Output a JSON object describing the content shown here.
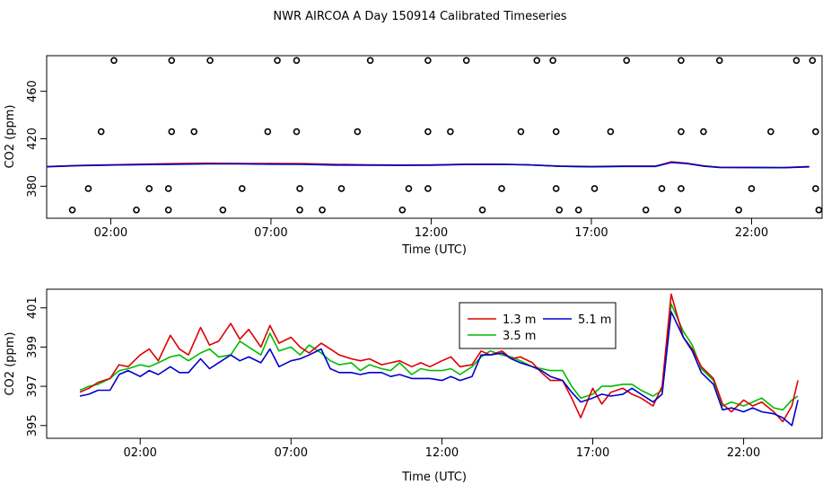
{
  "figure_title": "NWR AIRCOA A  Day 150914  Calibrated Timeseries",
  "colors": {
    "axis": "#000000",
    "series_1_3m": "#dd0000",
    "series_3_5m": "#00bb00",
    "series_5_1m": "#0000cc",
    "background": "#ffffff"
  },
  "chart_data": [
    {
      "type": "line",
      "title": "",
      "xlabel": "Time (UTC)",
      "ylabel": "CO2 (ppm)",
      "xlim": [
        0,
        24.2
      ],
      "ylim": [
        353,
        490
      ],
      "x_tick_values": [
        2,
        7,
        12,
        17,
        22
      ],
      "x_tick_labels": [
        "02:00",
        "07:00",
        "12:00",
        "17:00",
        "22:00"
      ],
      "y_tick_values": [
        380,
        420,
        460
      ],
      "y_tick_labels": [
        "380",
        "420",
        "460"
      ],
      "reference_points": {
        "levels": [
          360,
          378,
          426,
          486
        ],
        "points": [
          {
            "x": 0.8,
            "y": 360
          },
          {
            "x": 2.8,
            "y": 360
          },
          {
            "x": 3.8,
            "y": 360
          },
          {
            "x": 5.5,
            "y": 360
          },
          {
            "x": 7.9,
            "y": 360
          },
          {
            "x": 8.6,
            "y": 360
          },
          {
            "x": 11.1,
            "y": 360
          },
          {
            "x": 13.6,
            "y": 360
          },
          {
            "x": 16.0,
            "y": 360
          },
          {
            "x": 16.6,
            "y": 360
          },
          {
            "x": 18.7,
            "y": 360
          },
          {
            "x": 19.7,
            "y": 360
          },
          {
            "x": 21.6,
            "y": 360
          },
          {
            "x": 24.1,
            "y": 360
          },
          {
            "x": 1.3,
            "y": 378
          },
          {
            "x": 3.2,
            "y": 378
          },
          {
            "x": 3.8,
            "y": 378
          },
          {
            "x": 6.1,
            "y": 378
          },
          {
            "x": 7.9,
            "y": 378
          },
          {
            "x": 9.2,
            "y": 378
          },
          {
            "x": 11.3,
            "y": 378
          },
          {
            "x": 11.9,
            "y": 378
          },
          {
            "x": 14.2,
            "y": 378
          },
          {
            "x": 15.9,
            "y": 378
          },
          {
            "x": 17.1,
            "y": 378
          },
          {
            "x": 19.2,
            "y": 378
          },
          {
            "x": 19.8,
            "y": 378
          },
          {
            "x": 22.0,
            "y": 378
          },
          {
            "x": 24.0,
            "y": 378
          },
          {
            "x": 1.7,
            "y": 426
          },
          {
            "x": 3.9,
            "y": 426
          },
          {
            "x": 4.6,
            "y": 426
          },
          {
            "x": 6.9,
            "y": 426
          },
          {
            "x": 7.8,
            "y": 426
          },
          {
            "x": 9.7,
            "y": 426
          },
          {
            "x": 11.9,
            "y": 426
          },
          {
            "x": 12.6,
            "y": 426
          },
          {
            "x": 14.8,
            "y": 426
          },
          {
            "x": 15.9,
            "y": 426
          },
          {
            "x": 17.6,
            "y": 426
          },
          {
            "x": 19.8,
            "y": 426
          },
          {
            "x": 20.5,
            "y": 426
          },
          {
            "x": 22.6,
            "y": 426
          },
          {
            "x": 24.0,
            "y": 426
          },
          {
            "x": 2.1,
            "y": 486
          },
          {
            "x": 3.9,
            "y": 486
          },
          {
            "x": 5.1,
            "y": 486
          },
          {
            "x": 7.2,
            "y": 486
          },
          {
            "x": 7.8,
            "y": 486
          },
          {
            "x": 10.1,
            "y": 486
          },
          {
            "x": 11.9,
            "y": 486
          },
          {
            "x": 13.1,
            "y": 486
          },
          {
            "x": 15.3,
            "y": 486
          },
          {
            "x": 15.8,
            "y": 486
          },
          {
            "x": 18.1,
            "y": 486
          },
          {
            "x": 19.8,
            "y": 486
          },
          {
            "x": 21.0,
            "y": 486
          },
          {
            "x": 23.4,
            "y": 486
          },
          {
            "x": 23.9,
            "y": 486
          }
        ]
      },
      "x": [
        0.0,
        1.0,
        2.0,
        3.0,
        4.0,
        5.0,
        6.0,
        7.0,
        8.0,
        9.0,
        10.0,
        11.0,
        12.0,
        13.0,
        14.0,
        15.0,
        16.0,
        17.0,
        18.0,
        19.0,
        19.5,
        20.0,
        20.5,
        21.0,
        22.0,
        23.0,
        23.8
      ],
      "series": [
        {
          "name": "1.3 m",
          "values": [
            396.5,
            397.5,
            398.0,
            398.6,
            399.0,
            399.4,
            399.2,
            399.1,
            399.0,
            398.4,
            398.0,
            397.8,
            397.9,
            398.5,
            398.6,
            398.0,
            396.8,
            396.4,
            396.8,
            396.8,
            400.5,
            399.3,
            397.0,
            395.9,
            395.8,
            395.6,
            396.6
          ]
        },
        {
          "name": "3.5 m",
          "values": [
            396.6,
            397.4,
            397.9,
            398.3,
            398.7,
            399.0,
            399.0,
            398.8,
            398.6,
            398.0,
            397.9,
            397.8,
            397.9,
            398.4,
            398.6,
            398.1,
            397.0,
            396.7,
            397.0,
            397.0,
            400.2,
            399.2,
            397.2,
            396.0,
            395.9,
            395.8,
            396.5
          ]
        },
        {
          "name": "5.1 m",
          "values": [
            396.4,
            397.3,
            397.8,
            398.2,
            398.5,
            398.8,
            398.8,
            398.6,
            398.4,
            397.8,
            397.7,
            397.6,
            397.7,
            398.3,
            398.5,
            398.0,
            396.8,
            396.4,
            396.7,
            396.7,
            400.0,
            399.0,
            397.0,
            395.8,
            395.7,
            395.6,
            396.3
          ]
        }
      ]
    },
    {
      "type": "line",
      "title": "",
      "xlabel": "Time (UTC)",
      "ylabel": "CO2 (ppm)",
      "xlim": [
        -1.1,
        24.6
      ],
      "ylim": [
        394.35,
        401.95
      ],
      "x_tick_values": [
        2,
        7,
        12,
        17,
        22
      ],
      "x_tick_labels": [
        "02:00",
        "07:00",
        "12:00",
        "17:00",
        "22:00"
      ],
      "y_tick_values": [
        395,
        397,
        399,
        401
      ],
      "y_tick_labels": [
        "395",
        "397",
        "399",
        "401"
      ],
      "legend": {
        "location": "top-center",
        "entries": [
          "1.3 m",
          "5.1 m",
          "3.5 m"
        ]
      },
      "x": [
        0.0,
        0.3,
        0.6,
        1.0,
        1.3,
        1.6,
        2.0,
        2.3,
        2.6,
        3.0,
        3.3,
        3.6,
        4.0,
        4.3,
        4.6,
        5.0,
        5.3,
        5.6,
        6.0,
        6.3,
        6.6,
        7.0,
        7.3,
        7.6,
        8.0,
        8.3,
        8.6,
        9.0,
        9.3,
        9.6,
        10.0,
        10.3,
        10.6,
        11.0,
        11.3,
        11.6,
        12.0,
        12.3,
        12.6,
        13.0,
        13.3,
        13.6,
        14.0,
        14.3,
        14.6,
        15.0,
        15.3,
        15.6,
        16.0,
        16.3,
        16.6,
        17.0,
        17.3,
        17.6,
        18.0,
        18.3,
        18.6,
        19.0,
        19.3,
        19.6,
        20.0,
        20.3,
        20.6,
        21.0,
        21.3,
        21.6,
        22.0,
        22.3,
        22.6,
        23.0,
        23.3,
        23.6,
        23.8
      ],
      "series": [
        {
          "name": "1.3 m",
          "values": [
            396.7,
            396.9,
            397.2,
            397.4,
            398.1,
            398.0,
            398.6,
            398.9,
            398.3,
            399.6,
            398.9,
            398.6,
            400.0,
            399.1,
            399.3,
            400.2,
            399.4,
            399.9,
            399.0,
            400.1,
            399.2,
            399.5,
            399.0,
            398.7,
            399.2,
            398.9,
            398.6,
            398.4,
            398.3,
            398.4,
            398.1,
            398.2,
            398.3,
            398.0,
            398.2,
            398.0,
            398.3,
            398.5,
            398.0,
            398.1,
            398.8,
            398.6,
            398.8,
            398.4,
            398.5,
            398.2,
            397.7,
            397.3,
            397.3,
            396.4,
            395.4,
            396.9,
            396.1,
            396.7,
            396.9,
            396.6,
            396.4,
            396.0,
            397.0,
            401.7,
            399.5,
            398.9,
            398.0,
            397.4,
            396.1,
            395.7,
            396.3,
            396.0,
            396.2,
            395.7,
            395.2,
            396.0,
            397.3
          ]
        },
        {
          "name": "3.5 m",
          "values": [
            396.8,
            397.0,
            397.1,
            397.4,
            397.8,
            397.9,
            398.1,
            398.0,
            398.2,
            398.5,
            398.6,
            398.3,
            398.7,
            398.9,
            398.5,
            398.6,
            399.3,
            399.0,
            398.6,
            399.7,
            398.8,
            399.0,
            398.6,
            399.1,
            398.7,
            398.3,
            398.1,
            398.2,
            397.8,
            398.1,
            397.9,
            397.8,
            398.2,
            397.6,
            397.9,
            397.8,
            397.8,
            397.9,
            397.6,
            398.0,
            398.5,
            398.8,
            398.6,
            398.5,
            398.3,
            398.0,
            397.9,
            397.8,
            397.8,
            397.0,
            396.4,
            396.6,
            397.0,
            397.0,
            397.1,
            397.1,
            396.8,
            396.5,
            396.8,
            401.2,
            399.8,
            399.1,
            397.9,
            397.3,
            396.0,
            396.2,
            396.0,
            396.2,
            396.4,
            395.9,
            395.8,
            396.3,
            396.5
          ]
        },
        {
          "name": "5.1 m",
          "values": [
            396.5,
            396.6,
            396.8,
            396.8,
            397.6,
            397.8,
            397.5,
            397.8,
            397.6,
            398.0,
            397.7,
            397.7,
            398.4,
            397.9,
            398.2,
            398.6,
            398.3,
            398.5,
            398.2,
            398.9,
            398.0,
            398.3,
            398.4,
            398.6,
            398.9,
            397.9,
            397.7,
            397.7,
            397.6,
            397.7,
            397.7,
            397.5,
            397.6,
            397.4,
            397.4,
            397.4,
            397.3,
            397.5,
            397.3,
            397.5,
            398.6,
            398.6,
            398.7,
            398.4,
            398.2,
            398.0,
            397.8,
            397.5,
            397.3,
            396.7,
            396.2,
            396.4,
            396.6,
            396.5,
            396.6,
            396.9,
            396.6,
            396.2,
            396.6,
            400.8,
            399.5,
            398.8,
            397.7,
            397.1,
            395.8,
            395.9,
            395.7,
            395.9,
            395.7,
            395.6,
            395.4,
            395.0,
            396.3
          ]
        }
      ]
    }
  ]
}
